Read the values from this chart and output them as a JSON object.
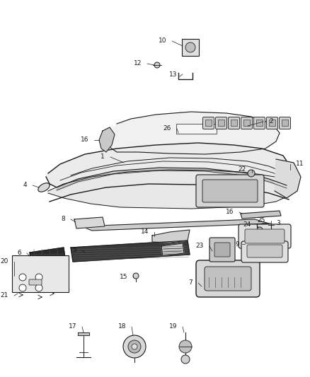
{
  "bg_color": "#ffffff",
  "fig_width": 4.38,
  "fig_height": 5.33,
  "dpi": 100,
  "lc": "#1a1a1a",
  "lc_light": "#555555",
  "fs_label": 6.5,
  "fs_num": 6.5
}
